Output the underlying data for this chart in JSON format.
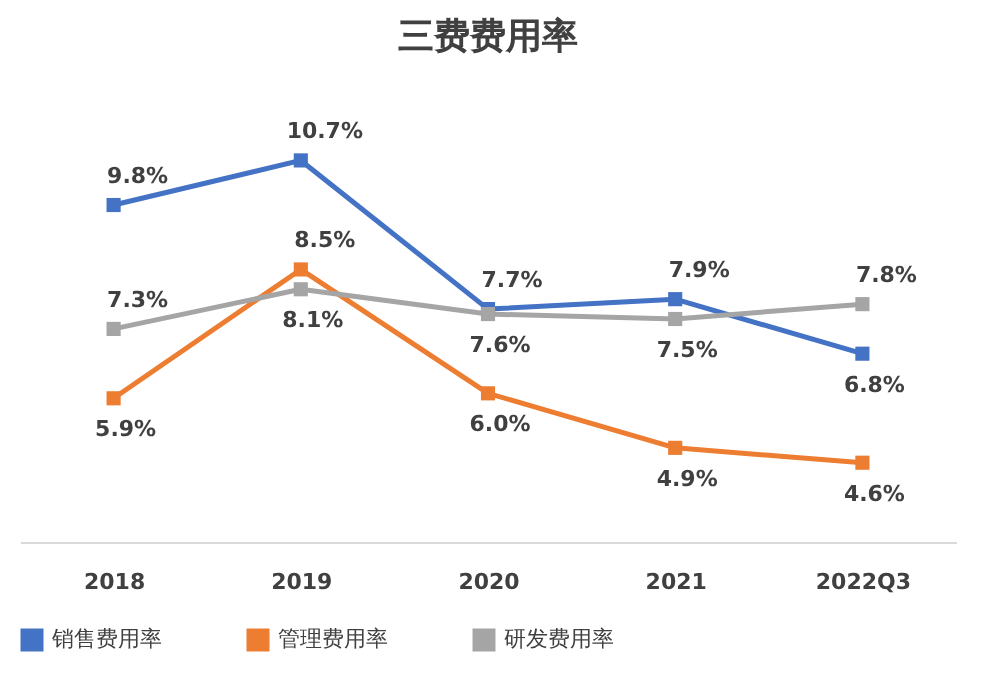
{
  "chart_data": {
    "type": "line",
    "title": "三费费用率",
    "categories": [
      "2018",
      "2019",
      "2020",
      "2021",
      "2022Q3"
    ],
    "series": [
      {
        "name": "销售费用率",
        "color": "#4472c4",
        "values": [
          9.8,
          10.7,
          7.7,
          7.9,
          6.8
        ],
        "value_labels": [
          "9.8%",
          "10.7%",
          "7.7%",
          "7.9%",
          "6.8%"
        ]
      },
      {
        "name": "管理费用率",
        "color": "#ed7d31",
        "values": [
          5.9,
          8.5,
          6.0,
          4.9,
          4.6
        ],
        "value_labels": [
          "5.9%",
          "8.5%",
          "6.0%",
          "4.9%",
          "4.6%"
        ]
      },
      {
        "name": "研发费用率",
        "color": "#a5a5a5",
        "values": [
          7.3,
          8.1,
          7.6,
          7.5,
          7.8
        ],
        "value_labels": [
          "7.3%",
          "8.1%",
          "7.6%",
          "7.5%",
          "7.8%"
        ]
      }
    ],
    "marker": "square",
    "line_style": "solid",
    "legend": "bottom",
    "tick_labels": "x"
  }
}
